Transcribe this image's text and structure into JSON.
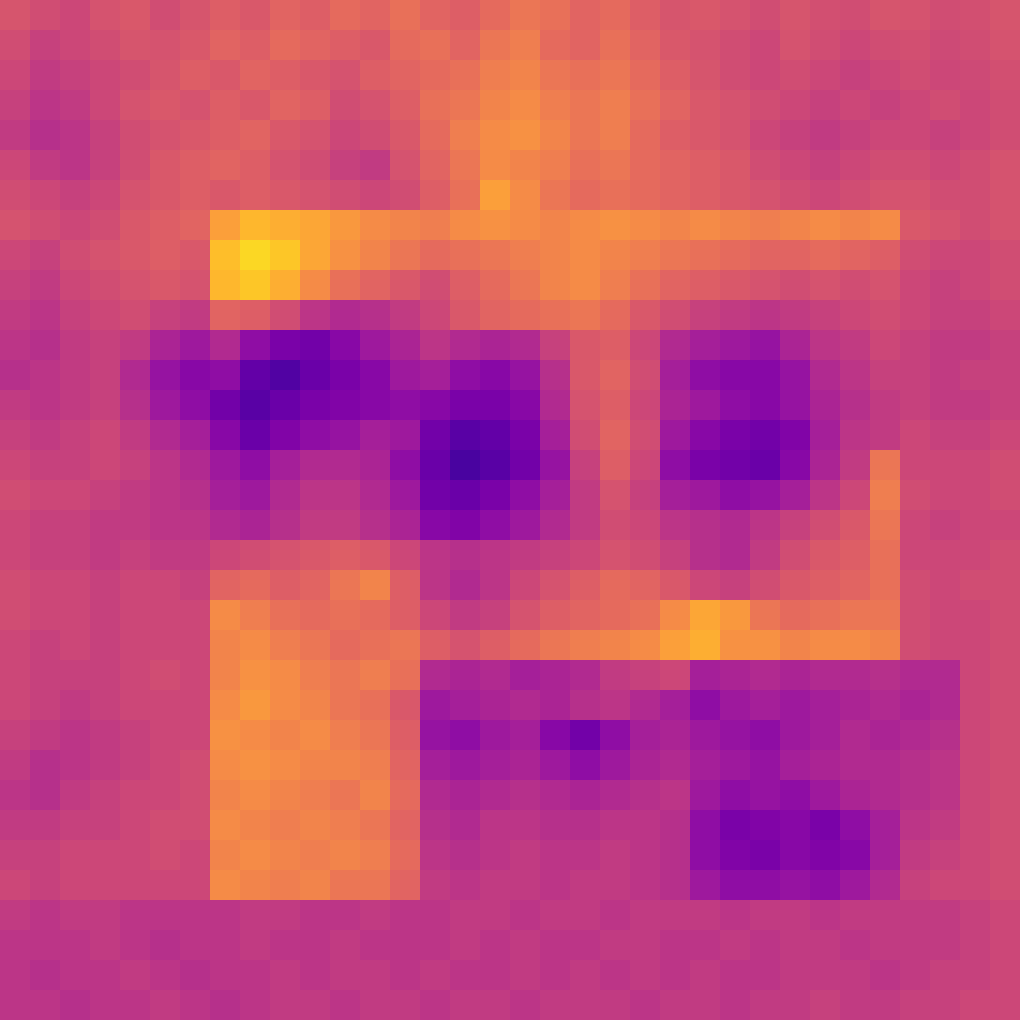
{
  "chart_data": {
    "type": "heatmap",
    "color": "plasma",
    "color_range": [
      0,
      100
    ],
    "tick_labels": false,
    "cells": [
      [
        55,
        52,
        50,
        54,
        56,
        52,
        55,
        58,
        56,
        60,
        58,
        62,
        60,
        64,
        60,
        58,
        62,
        66,
        64,
        60,
        62,
        58,
        55,
        56,
        54,
        52,
        55,
        53,
        52,
        55,
        54,
        52,
        53,
        55
      ],
      [
        52,
        48,
        50,
        52,
        55,
        54,
        56,
        60,
        58,
        62,
        60,
        58,
        56,
        62,
        64,
        60,
        66,
        68,
        62,
        60,
        64,
        60,
        56,
        54,
        52,
        50,
        54,
        52,
        50,
        52,
        53,
        51,
        52,
        54
      ],
      [
        50,
        46,
        48,
        50,
        52,
        55,
        58,
        56,
        60,
        58,
        56,
        54,
        58,
        60,
        62,
        64,
        68,
        70,
        66,
        64,
        66,
        62,
        58,
        55,
        52,
        50,
        52,
        50,
        48,
        50,
        52,
        50,
        51,
        53
      ],
      [
        48,
        44,
        46,
        50,
        54,
        56,
        54,
        58,
        56,
        60,
        58,
        52,
        54,
        58,
        64,
        66,
        70,
        72,
        68,
        66,
        68,
        64,
        60,
        56,
        54,
        52,
        50,
        48,
        50,
        48,
        50,
        52,
        50,
        52
      ],
      [
        46,
        42,
        44,
        48,
        52,
        54,
        56,
        58,
        60,
        56,
        54,
        50,
        52,
        56,
        62,
        68,
        72,
        74,
        70,
        66,
        68,
        62,
        58,
        56,
        54,
        50,
        48,
        46,
        48,
        50,
        50,
        48,
        50,
        52
      ],
      [
        50,
        46,
        44,
        48,
        52,
        56,
        58,
        60,
        58,
        54,
        52,
        48,
        46,
        54,
        60,
        66,
        72,
        70,
        68,
        64,
        66,
        62,
        60,
        58,
        56,
        52,
        50,
        48,
        50,
        52,
        52,
        50,
        52,
        54
      ],
      [
        52,
        50,
        48,
        50,
        54,
        56,
        58,
        56,
        58,
        56,
        54,
        52,
        50,
        52,
        58,
        64,
        78,
        72,
        66,
        62,
        64,
        62,
        60,
        58,
        56,
        54,
        52,
        50,
        52,
        54,
        54,
        52,
        52,
        54
      ],
      [
        54,
        52,
        50,
        52,
        56,
        58,
        60,
        78,
        84,
        82,
        80,
        76,
        72,
        70,
        68,
        72,
        74,
        72,
        70,
        72,
        74,
        72,
        70,
        72,
        70,
        68,
        70,
        72,
        70,
        72,
        56,
        54,
        52,
        54
      ],
      [
        50,
        48,
        52,
        54,
        56,
        58,
        56,
        86,
        92,
        88,
        80,
        74,
        70,
        66,
        62,
        64,
        66,
        68,
        70,
        72,
        70,
        68,
        66,
        64,
        62,
        60,
        60,
        62,
        60,
        58,
        52,
        50,
        50,
        52
      ],
      [
        48,
        46,
        50,
        52,
        54,
        56,
        54,
        84,
        88,
        82,
        72,
        64,
        60,
        56,
        52,
        58,
        62,
        66,
        70,
        72,
        68,
        64,
        60,
        58,
        56,
        54,
        52,
        54,
        52,
        54,
        50,
        48,
        50,
        52
      ],
      [
        46,
        44,
        48,
        50,
        52,
        48,
        46,
        60,
        58,
        52,
        44,
        40,
        42,
        46,
        50,
        56,
        60,
        62,
        64,
        66,
        62,
        56,
        52,
        48,
        46,
        44,
        46,
        48,
        50,
        52,
        50,
        48,
        48,
        50
      ],
      [
        44,
        42,
        46,
        48,
        46,
        38,
        34,
        40,
        30,
        24,
        22,
        28,
        34,
        38,
        44,
        40,
        38,
        40,
        48,
        56,
        58,
        50,
        40,
        36,
        34,
        32,
        38,
        44,
        46,
        50,
        48,
        46,
        46,
        48
      ],
      [
        42,
        44,
        46,
        48,
        40,
        32,
        28,
        30,
        18,
        14,
        20,
        24,
        28,
        34,
        36,
        30,
        28,
        32,
        42,
        56,
        60,
        52,
        36,
        30,
        28,
        28,
        32,
        40,
        44,
        48,
        48,
        46,
        48,
        48
      ],
      [
        46,
        44,
        46,
        48,
        42,
        34,
        30,
        22,
        16,
        20,
        24,
        26,
        28,
        30,
        28,
        24,
        24,
        28,
        40,
        54,
        58,
        50,
        38,
        34,
        30,
        28,
        32,
        38,
        42,
        46,
        48,
        46,
        46,
        48
      ],
      [
        48,
        46,
        48,
        50,
        46,
        40,
        36,
        28,
        20,
        26,
        30,
        32,
        36,
        34,
        22,
        16,
        18,
        24,
        36,
        52,
        60,
        52,
        34,
        28,
        24,
        22,
        26,
        36,
        44,
        46,
        50,
        48,
        48,
        50
      ],
      [
        50,
        48,
        48,
        50,
        48,
        44,
        40,
        34,
        30,
        36,
        40,
        40,
        38,
        30,
        20,
        12,
        16,
        22,
        32,
        48,
        58,
        50,
        30,
        24,
        22,
        20,
        28,
        38,
        46,
        66,
        50,
        50,
        50,
        52
      ],
      [
        52,
        50,
        50,
        48,
        46,
        44,
        42,
        36,
        34,
        40,
        44,
        44,
        40,
        34,
        22,
        20,
        24,
        30,
        36,
        46,
        54,
        48,
        36,
        34,
        30,
        32,
        36,
        44,
        50,
        68,
        52,
        50,
        50,
        52
      ],
      [
        50,
        48,
        48,
        46,
        46,
        44,
        44,
        40,
        38,
        42,
        46,
        46,
        42,
        38,
        28,
        26,
        30,
        34,
        40,
        46,
        52,
        50,
        44,
        42,
        40,
        44,
        48,
        52,
        56,
        66,
        50,
        48,
        50,
        50
      ],
      [
        50,
        48,
        48,
        46,
        48,
        46,
        46,
        50,
        52,
        54,
        56,
        58,
        56,
        50,
        44,
        42,
        44,
        46,
        48,
        50,
        54,
        52,
        48,
        42,
        40,
        46,
        52,
        56,
        58,
        64,
        50,
        50,
        50,
        52
      ],
      [
        52,
        50,
        50,
        48,
        50,
        50,
        48,
        60,
        62,
        58,
        60,
        66,
        70,
        58,
        44,
        40,
        44,
        50,
        54,
        58,
        62,
        60,
        56,
        50,
        48,
        52,
        56,
        58,
        60,
        64,
        52,
        50,
        52,
        52
      ],
      [
        52,
        50,
        50,
        48,
        50,
        50,
        50,
        72,
        68,
        64,
        62,
        64,
        62,
        58,
        50,
        46,
        48,
        54,
        58,
        60,
        62,
        64,
        72,
        80,
        76,
        66,
        62,
        64,
        66,
        66,
        52,
        50,
        50,
        52
      ],
      [
        50,
        48,
        50,
        48,
        50,
        50,
        50,
        70,
        72,
        68,
        66,
        62,
        64,
        66,
        58,
        54,
        58,
        62,
        66,
        68,
        70,
        72,
        78,
        82,
        74,
        74,
        70,
        72,
        72,
        70,
        52,
        50,
        50,
        52
      ],
      [
        50,
        48,
        48,
        48,
        50,
        52,
        50,
        70,
        74,
        72,
        68,
        66,
        68,
        64,
        40,
        38,
        40,
        36,
        38,
        40,
        46,
        48,
        50,
        36,
        38,
        40,
        38,
        40,
        40,
        42,
        40,
        40,
        50,
        52
      ],
      [
        50,
        48,
        46,
        48,
        50,
        50,
        50,
        72,
        76,
        72,
        70,
        66,
        64,
        56,
        34,
        36,
        38,
        40,
        38,
        42,
        44,
        40,
        36,
        30,
        34,
        36,
        34,
        36,
        38,
        40,
        38,
        40,
        50,
        52
      ],
      [
        48,
        46,
        44,
        46,
        48,
        50,
        50,
        74,
        72,
        70,
        72,
        68,
        66,
        58,
        32,
        30,
        34,
        36,
        28,
        22,
        30,
        36,
        38,
        34,
        32,
        30,
        34,
        36,
        40,
        38,
        40,
        42,
        50,
        52
      ],
      [
        46,
        42,
        44,
        46,
        48,
        50,
        52,
        72,
        74,
        72,
        70,
        70,
        68,
        60,
        36,
        34,
        36,
        38,
        34,
        30,
        34,
        38,
        40,
        36,
        34,
        32,
        36,
        38,
        40,
        40,
        42,
        44,
        50,
        52
      ],
      [
        44,
        42,
        46,
        48,
        50,
        50,
        52,
        70,
        72,
        70,
        68,
        66,
        70,
        62,
        40,
        38,
        40,
        42,
        40,
        38,
        40,
        42,
        44,
        34,
        30,
        32,
        30,
        34,
        38,
        40,
        42,
        44,
        50,
        52
      ],
      [
        46,
        46,
        48,
        48,
        50,
        52,
        52,
        72,
        70,
        68,
        70,
        68,
        66,
        60,
        42,
        40,
        44,
        44,
        42,
        42,
        44,
        44,
        42,
        30,
        24,
        26,
        28,
        24,
        30,
        36,
        44,
        46,
        50,
        52
      ],
      [
        48,
        48,
        50,
        50,
        50,
        52,
        50,
        70,
        72,
        70,
        68,
        70,
        68,
        62,
        44,
        42,
        44,
        46,
        44,
        44,
        46,
        44,
        42,
        30,
        26,
        24,
        28,
        26,
        28,
        36,
        46,
        48,
        50,
        52
      ],
      [
        50,
        48,
        50,
        50,
        50,
        50,
        50,
        72,
        70,
        68,
        70,
        66,
        66,
        60,
        46,
        44,
        46,
        46,
        44,
        46,
        46,
        44,
        42,
        34,
        30,
        30,
        32,
        30,
        34,
        40,
        48,
        50,
        50,
        52
      ],
      [
        46,
        44,
        46,
        46,
        44,
        44,
        44,
        44,
        46,
        46,
        44,
        44,
        46,
        44,
        44,
        46,
        46,
        44,
        46,
        46,
        44,
        46,
        46,
        46,
        44,
        46,
        46,
        44,
        46,
        46,
        46,
        46,
        48,
        50
      ],
      [
        44,
        44,
        44,
        46,
        44,
        42,
        44,
        44,
        46,
        44,
        44,
        46,
        44,
        44,
        44,
        46,
        44,
        46,
        44,
        44,
        46,
        46,
        44,
        44,
        46,
        44,
        46,
        46,
        44,
        46,
        46,
        46,
        48,
        50
      ],
      [
        44,
        42,
        44,
        44,
        46,
        44,
        42,
        44,
        44,
        46,
        44,
        46,
        46,
        44,
        46,
        44,
        44,
        46,
        44,
        46,
        44,
        46,
        44,
        46,
        44,
        44,
        46,
        46,
        46,
        44,
        46,
        48,
        48,
        50
      ],
      [
        44,
        44,
        42,
        44,
        44,
        46,
        44,
        42,
        44,
        46,
        46,
        44,
        46,
        46,
        44,
        46,
        46,
        44,
        46,
        46,
        46,
        44,
        46,
        46,
        44,
        46,
        46,
        48,
        46,
        46,
        48,
        48,
        50,
        50
      ]
    ]
  }
}
